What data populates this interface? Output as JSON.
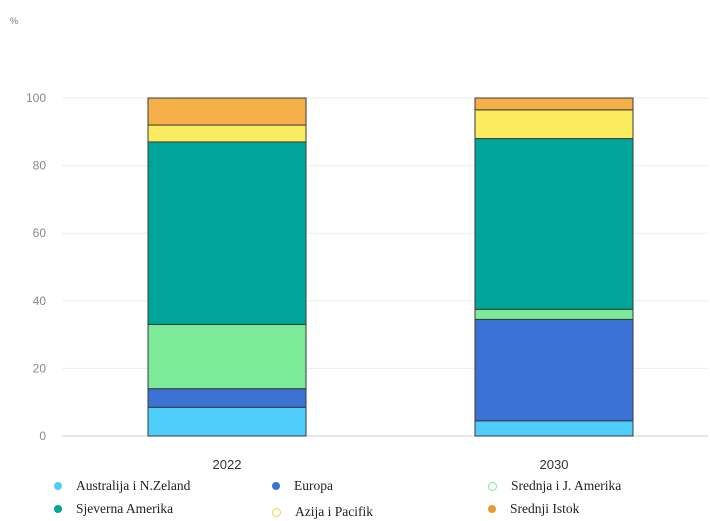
{
  "chart_data": {
    "type": "bar",
    "stacked": true,
    "unit_label": "%",
    "categories": [
      "2022",
      "2030"
    ],
    "ylim": [
      0,
      100
    ],
    "yticks": [
      0,
      20,
      40,
      60,
      80,
      100
    ],
    "grid": true,
    "legend_position": "bottom",
    "series": [
      {
        "name": "Australija i N.Zeland",
        "color": "#4fcdfb",
        "values": [
          8.5,
          4.5
        ]
      },
      {
        "name": "Europa",
        "color": "#3b72d4",
        "values": [
          5.5,
          30
        ]
      },
      {
        "name": "Srednja i J. Amerika",
        "color": "#7cea98",
        "values": [
          19,
          3
        ]
      },
      {
        "name": "Sjeverna Amerika",
        "color": "#00a59a",
        "values": [
          54,
          50.5
        ]
      },
      {
        "name": "Azija i Pacifik",
        "color": "#fbec5f",
        "values": [
          5,
          8.5
        ]
      },
      {
        "name": "Srednji Istok",
        "color": "#f5b04a",
        "values": [
          8,
          3.5
        ]
      }
    ]
  },
  "legend": {
    "items": [
      {
        "label": "Australija i N.Zeland",
        "color": "#4fcdfb",
        "style": "filled"
      },
      {
        "label": "Europa",
        "color": "#3b72d4",
        "style": "filled"
      },
      {
        "label": "Srednja  i J. Amerika",
        "color": "#7cea98",
        "style": "hollow"
      },
      {
        "label": "Sjeverna  Amerika",
        "color": "#00a59a",
        "style": "filled"
      },
      {
        "label": "Azija i Pacifik",
        "color": "#e6d84a",
        "style": "hollow"
      },
      {
        "label": "Srednji  Istok",
        "color": "#e89a2e",
        "style": "filled"
      }
    ]
  }
}
